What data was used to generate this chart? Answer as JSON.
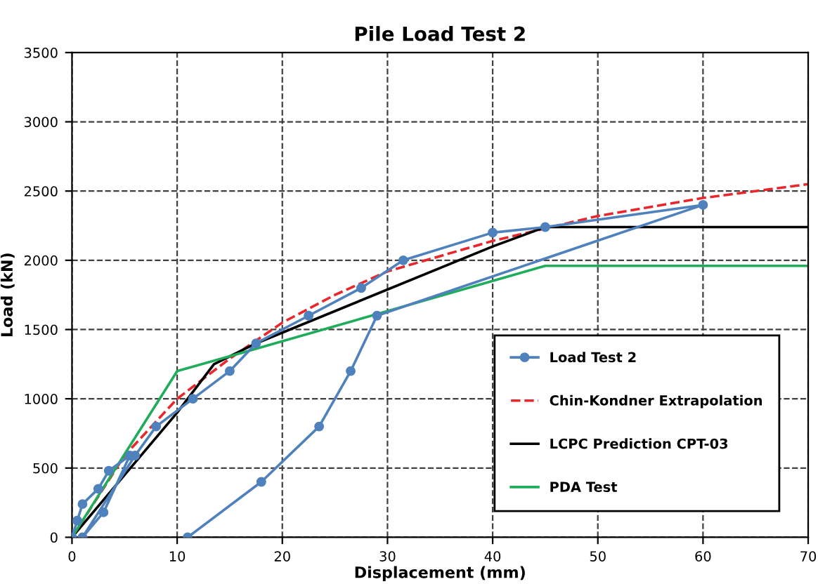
{
  "chart_data": {
    "type": "line",
    "title": "Pile Load Test 2",
    "xlabel": "Displacement (mm)",
    "ylabel": "Load (kN)",
    "xlim": [
      0,
      70
    ],
    "xticks": [
      0,
      10,
      20,
      30,
      40,
      50,
      60,
      70
    ],
    "ylim": [
      0,
      3500
    ],
    "yticks": [
      0,
      500,
      1000,
      1500,
      2000,
      2500,
      3000,
      3500
    ],
    "grid": true,
    "legend": "bottom right",
    "series": [
      {
        "name": "Load Test 2",
        "color": "#4f81bd",
        "marker": "circle",
        "line_style": "solid",
        "x": [
          0,
          0.5,
          1,
          2.5,
          3.5,
          5.5,
          3,
          1,
          6,
          8,
          11.5,
          15,
          17.5,
          22.5,
          27.5,
          31.5,
          40,
          45,
          60,
          29,
          26.5,
          23.5,
          18,
          11
        ],
        "values": [
          0,
          120,
          240,
          350,
          480,
          590,
          180,
          0,
          590,
          800,
          1000,
          1200,
          1400,
          1600,
          1800,
          2000,
          2200,
          2240,
          2400,
          1600,
          1200,
          800,
          400,
          0
        ]
      },
      {
        "name": "Chin-Kondner Extrapolation",
        "color": "#e8262b",
        "marker": "none",
        "line_style": "dashed",
        "x": [
          0,
          5,
          10,
          15,
          20,
          25,
          30,
          40,
          50,
          60,
          70
        ],
        "values": [
          0,
          590,
          1000,
          1290,
          1550,
          1750,
          1920,
          2140,
          2320,
          2450,
          2550
        ]
      },
      {
        "name": "LCPC Prediction CPT-03",
        "color": "#000000",
        "marker": "none",
        "line_style": "solid",
        "x": [
          0,
          10,
          13.5,
          17.5,
          40,
          45,
          70
        ],
        "values": [
          0,
          900,
          1250,
          1400,
          2100,
          2240,
          2240
        ]
      },
      {
        "name": "PDA Test",
        "color": "#1fad5b",
        "marker": "none",
        "line_style": "solid",
        "x": [
          0,
          10,
          17,
          45,
          70
        ],
        "values": [
          0,
          1200,
          1350,
          1960,
          1960
        ]
      }
    ]
  }
}
